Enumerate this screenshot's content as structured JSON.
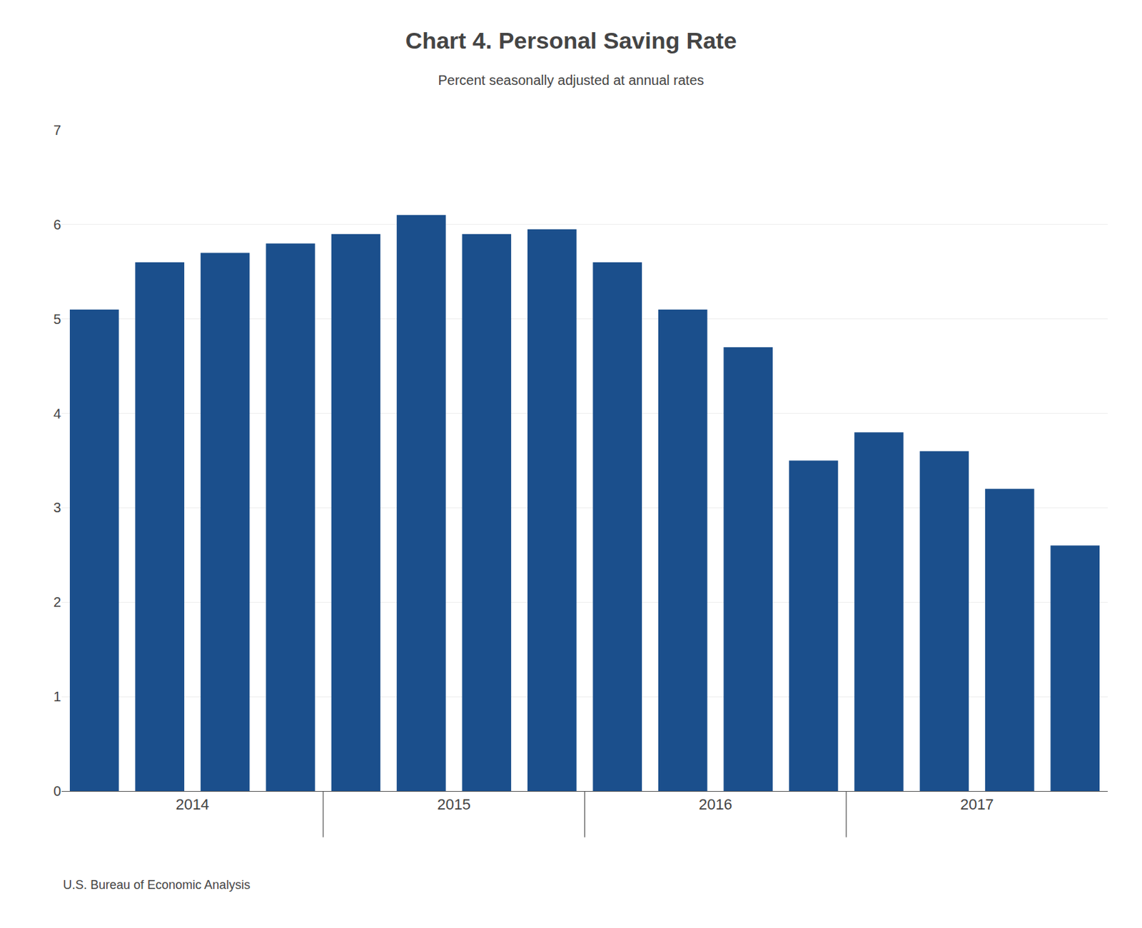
{
  "chart_data": {
    "type": "bar",
    "title": "Chart 4. Personal Saving Rate",
    "subtitle": "Percent seasonally adjusted at annual rates",
    "annotations": [
      "U.S. Bureau of Economic Analysis"
    ],
    "categories": [
      "2014",
      "2014",
      "2014",
      "2014",
      "2015",
      "2015",
      "2015",
      "2015",
      "2016",
      "2016",
      "2016",
      "2016",
      "2017",
      "2017",
      "2017",
      "2017"
    ],
    "values": [
      5.1,
      5.6,
      5.7,
      5.8,
      5.9,
      6.1,
      5.9,
      5.95,
      5.6,
      5.1,
      4.7,
      3.5,
      3.8,
      3.6,
      3.2,
      2.6
    ],
    "color": "#1b4f8c",
    "ylim": [
      0,
      7
    ],
    "yticks": [
      0,
      1,
      2,
      3,
      4,
      5,
      6,
      7
    ],
    "grid": true
  }
}
